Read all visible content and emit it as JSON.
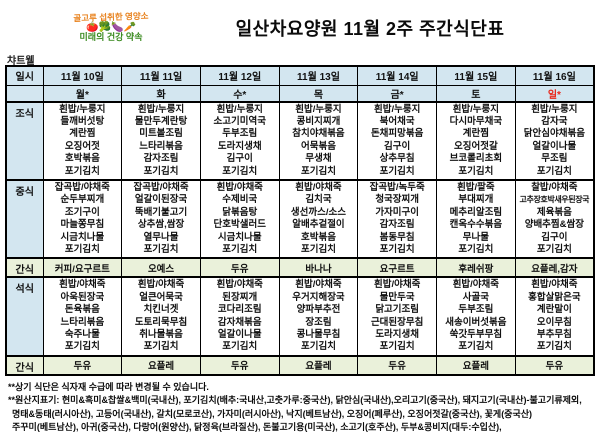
{
  "colors": {
    "header_bg": "#d3e6f0",
    "snack_bg": "#eaf1da",
    "sunday_red": "#e8291d",
    "logo_orange": "#e8821e",
    "logo_green": "#3a8a1f"
  },
  "header": {
    "logo": {
      "top": "골고루 섭취한 영양소",
      "veg_glyphs": "🍅🥦🍆🥕",
      "bottom": "미래의 건강 약속"
    },
    "title": "일산차요양원   11월 2주 주간식단표",
    "brand": "챠트웰"
  },
  "table": {
    "corner_label": "일시",
    "dates": [
      "11월 10일",
      "11월 11일",
      "11월 12일",
      "11월 13일",
      "11월 14일",
      "11월 15일",
      "11월 16일"
    ],
    "days": [
      "월*",
      "화",
      "수*",
      "목",
      "금*",
      "토",
      "일*"
    ],
    "sunday_index": 6,
    "sections": [
      {
        "label": "조식",
        "type": "meal",
        "columns": [
          [
            "흰밥/누룽지",
            "들깨버섯탕",
            "계란찜",
            "오징어젓",
            "호박볶음",
            "포기김치"
          ],
          [
            "흰밥/누룽지",
            "물만두계란탕",
            "미트볼조림",
            "느타리볶음",
            "감자조림",
            "포기김치"
          ],
          [
            "흰밥/누룽지",
            "소고기미역국",
            "두부조림",
            "도라지생채",
            "김구이",
            "포기김치"
          ],
          [
            "흰밥/누룽지",
            "콩비지찌개",
            "참치야채볶음",
            "어묵볶음",
            "무생채",
            "포기김치"
          ],
          [
            "흰밥/누룽지",
            "북어채국",
            "돈채피망볶음",
            "김구이",
            "상추무침",
            "포기김치"
          ],
          [
            "흰밥/누룽지",
            "다시마무채국",
            "계란찜",
            "오징어젓갈",
            "브코롤리초회",
            "포기김치"
          ],
          [
            "흰밥/누룽지",
            "감자국",
            "닭안심야채볶음",
            "얼갈이나물",
            "무조림",
            "포기김치"
          ]
        ]
      },
      {
        "label": "중식",
        "type": "meal",
        "columns": [
          [
            "잡곡밥/야채죽",
            "순두부찌개",
            "조기구이",
            "마늘쫑무침",
            "시금치나물",
            "포기김치"
          ],
          [
            "잡곡밥/야채죽",
            "얼갈이된장국",
            "뚝배기불고기",
            "상추쌈,쌈장",
            "열무나물",
            "포기김치"
          ],
          [
            "흰밥/야채죽",
            "수제비국",
            "닭볶음탕",
            "단호박샐러드",
            "시금치나물",
            "포기김치"
          ],
          [
            "흰밥/야채죽",
            "김치국",
            "생선까스/소스",
            "알배추겉절이",
            "호박볶음",
            "포기김치"
          ],
          [
            "잡곡밥/녹두죽",
            "청국장찌개",
            "가자미구이",
            "감자조림",
            "봄동무침",
            "포기김치"
          ],
          [
            "흰밥/팥죽",
            "부대찌개",
            "메추리알조림",
            "캔옥수수볶음",
            "무나물",
            "포기김치"
          ],
          [
            "찰밥/야채죽",
            "고추장호박새우된장국",
            "제육볶음",
            "양배추찜&쌈장",
            "김구이",
            "포기김치"
          ]
        ]
      },
      {
        "label": "간식",
        "type": "snack",
        "columns": [
          "커피/요구르트",
          "오예스",
          "두유",
          "바나나",
          "요구르트",
          "후레쉬팡",
          "요플레,감자"
        ]
      },
      {
        "label": "석식",
        "type": "meal",
        "columns": [
          [
            "흰밥/야채죽",
            "아욱된장국",
            "돈육볶음",
            "느타리볶음",
            "숙주나물",
            "포기김치"
          ],
          [
            "흰밥/야채죽",
            "얼큰어묵국",
            "치킨너겟",
            "도토리묵무침",
            "취나물볶음",
            "포기김치"
          ],
          [
            "흰밥/야채죽",
            "된장찌개",
            "코다리조림",
            "감자채볶음",
            "얼갈이나물",
            "포기김치"
          ],
          [
            "흰밥/야채죽",
            "우거지해장국",
            "양파부추전",
            "장조림",
            "콩나물무침",
            "포기김치"
          ],
          [
            "흰밥/야채죽",
            "물만두국",
            "닭고기조림",
            "근대된장무침",
            "도라지생채",
            "포기김치"
          ],
          [
            "흰밥/야채죽",
            "사골국",
            "두부조림",
            "새송이버섯볶음",
            "쑥갓두부무침",
            "포기김치"
          ],
          [
            "흰밥/야채죽",
            "홍합살맑은국",
            "계란말이",
            "오이무침",
            "부추무침",
            "포기김치"
          ]
        ]
      },
      {
        "label": "간식",
        "type": "snack",
        "columns": [
          "두유",
          "요플레",
          "두유",
          "요플레",
          "두유",
          "요플레",
          "두유"
        ]
      }
    ]
  },
  "footnotes": [
    "**상기 식단은 식자재 수급에 따라 변경될 수 있습니다.",
    "**원산지표기: 현미&흑미&찹쌀&백미(국내산), 포기김치(배추:국내산,고춧가루:중국산), 닭안심(국내산),오리고기(중국산), 돼지고기(국내산)-불고기류제외,",
    "명태&동태(러시아산), 고등어(국내산), 갈치(모로코산), 가자미(러시아산), 낙지(베트남산), 오징어(페루산), 오징어젓갈(중국산),  꽃게(중국산)",
    "주꾸미(베트남산), 아귀(중국산), 다랑어(원양산), 닭정육(브라질산), 돈불고기용(미국산), 소고기(호주산), 두부&콩비지(대두:수입산),"
  ]
}
